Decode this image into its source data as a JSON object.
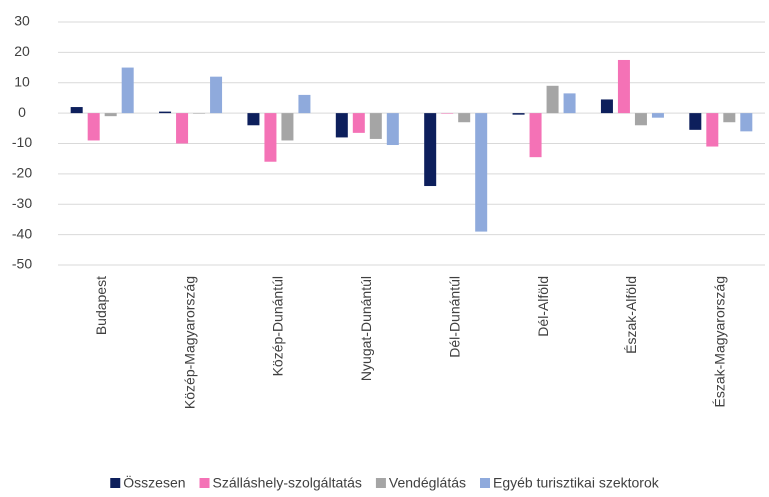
{
  "chart_data": {
    "type": "bar",
    "categories": [
      "Budapest",
      "Közép-Magyarország",
      "Közép-Dunántúl",
      "Nyugat-Dunántúl",
      "Dél-Dunántúl",
      "Dél-Alföld",
      "Észak-Alföld",
      "Észak-Magyarország"
    ],
    "series": [
      {
        "name": "Összesen",
        "color": "#0d1f5c",
        "values": [
          2,
          0.5,
          -4,
          -8,
          -24,
          -0.5,
          4.5,
          -5.5
        ]
      },
      {
        "name": "Szálláshely-szolgáltatás",
        "color": "#f472b6",
        "values": [
          -9,
          -10,
          -16,
          -6.5,
          0,
          -14.5,
          17.5,
          -11
        ]
      },
      {
        "name": "Vendéglátás",
        "color": "#a5a5a5",
        "values": [
          -1,
          0,
          -9,
          -8.5,
          -3,
          9,
          -4,
          -3
        ]
      },
      {
        "name": "Egyéb turisztikai szektorok",
        "color": "#8faadc",
        "values": [
          15,
          12,
          6,
          -10.5,
          -39,
          6.5,
          -1.5,
          -6
        ]
      }
    ],
    "ylim": [
      -50,
      30
    ],
    "yticks": [
      -50,
      -40,
      -30,
      -20,
      -10,
      0,
      10,
      20,
      30
    ],
    "grid": true,
    "legend": "bottom"
  }
}
